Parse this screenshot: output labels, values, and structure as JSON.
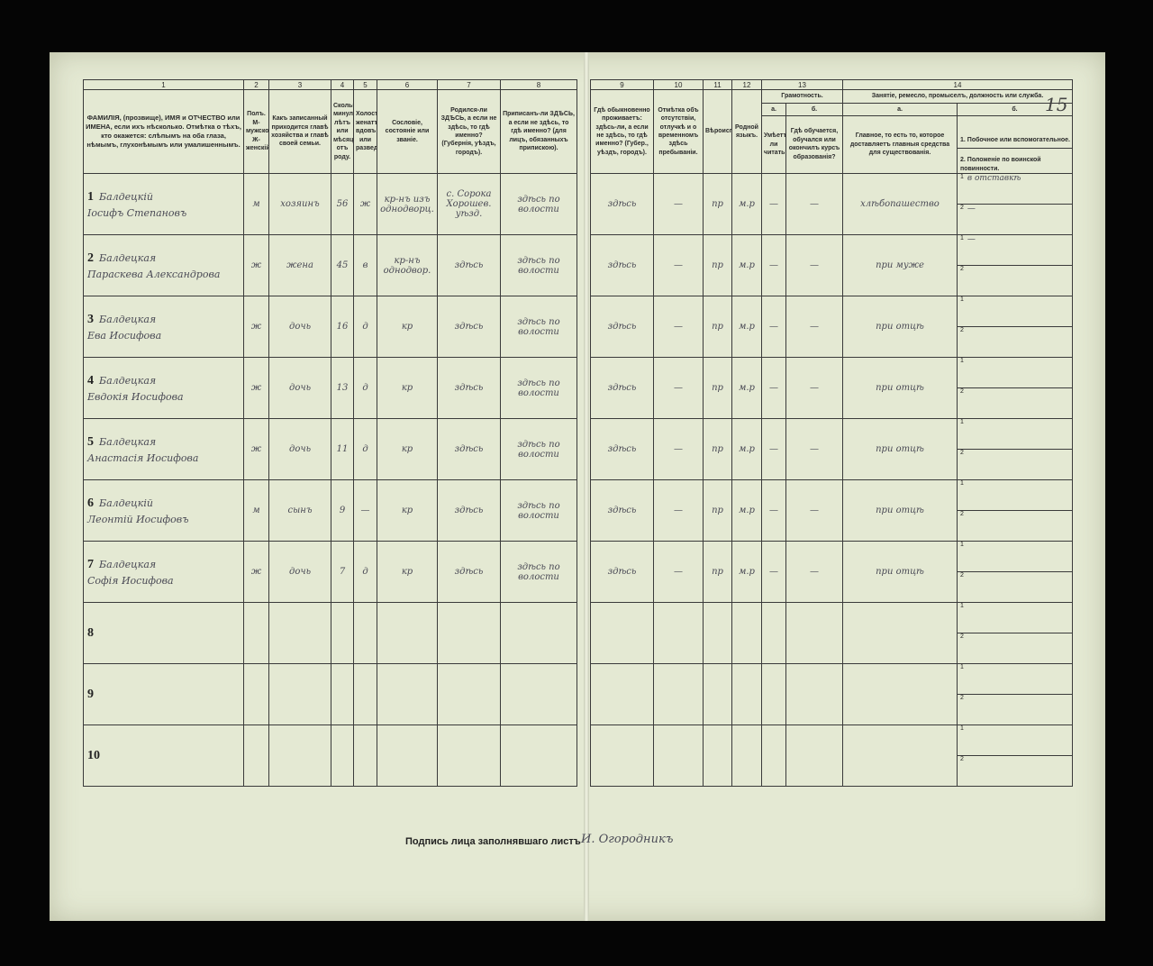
{
  "left_headers": {
    "numbers": [
      "1",
      "2",
      "3",
      "4",
      "5",
      "6",
      "7",
      "8"
    ],
    "titles": [
      "ФАМИЛІЯ, (прозвище), ИМЯ и ОТЧЕСТВО или ИМЕНА, если ихъ нѣсколько. Отмѣтка о тѣхъ, кто окажется: слѣпымъ на оба глаза, нѣмымъ, глухонѣмымъ или умалишеннымъ.",
      "Полъ. М-мужской. Ж-женскій.",
      "Какъ записанный приходится главѣ хозяйства и главѣ своей семьи.",
      "Сколько минуло лѣтъ или мѣсяцевъ отъ роду.",
      "Холостъ, женатъ, вдовъ или разведенъ.",
      "Сословіе, состояніе или званіе.",
      "Родился-ли ЗДѢСЬ, а если не здѣсь, то гдѣ именно? (Губернія, уѣздъ, городъ).",
      "Приписанъ-ли ЗДѢСЬ, а если не здѣсь, то гдѣ именно? (для лицъ, обязанныхъ припискою)."
    ]
  },
  "right_headers": {
    "numbers": [
      "9",
      "10",
      "11",
      "12",
      "13",
      "14"
    ],
    "titles": [
      "Гдѣ обыкновенно проживаетъ: здѣсь-ли, а если не здѣсь, то гдѣ именно? (Губер., уѣздъ, городъ).",
      "Отмѣтка объ отсутствіи, отлучкѣ и о временномъ здѣсь пребываніи.",
      "Вѣроисповѣданіе.",
      "Родной языкъ.",
      "Грамотность.",
      "Занятіе, ремесло, промыселъ, должность или служба."
    ],
    "lit_a": "а.",
    "lit_b": "б.",
    "lit_a_title": "Умѣетъ-ли читать?",
    "lit_b_title": "Гдѣ обучается, обучался или окончилъ курсъ образованія?",
    "occ_a": "а.",
    "occ_b": "б.",
    "occ_a_title": "Главное, то есть то, которое доставляетъ главныя средства для существованія.",
    "occ_b_1": "1. Побочное или вспомогательное.",
    "occ_b_2": "2. Положеніе по воинской повинности."
  },
  "sheet_number": "15",
  "rows": [
    {
      "n": "1",
      "surname": "Балдецкiй",
      "name": "Iосифъ Степановъ",
      "sex": "м",
      "rel": "хозяинъ",
      "age": "56",
      "mar": "ж",
      "estate": "кр-нъ изъ однодворц.",
      "born": "с. Сорока Хорошев. уѣзд.",
      "reg": "здѣсь по волости",
      "res": "здѣсь",
      "abs": "—",
      "rel2": "пр",
      "lang": "м.р",
      "lit": "—",
      "school": "—",
      "occ": "хлѣбопашество",
      "side1": "в отставкѣ",
      "side2": "—"
    },
    {
      "n": "2",
      "surname": "Балдецкая",
      "name": "Параскева Александрова",
      "sex": "ж",
      "rel": "жена",
      "age": "45",
      "mar": "в",
      "estate": "кр-нъ однодвор.",
      "born": "здѣсь",
      "reg": "здѣсь по волости",
      "res": "здѣсь",
      "abs": "—",
      "rel2": "пр",
      "lang": "м.р",
      "lit": "—",
      "school": "—",
      "occ": "при муже",
      "side1": "—",
      "side2": ""
    },
    {
      "n": "3",
      "surname": "Балдецкая",
      "name": "Ева Иосифова",
      "sex": "ж",
      "rel": "дочь",
      "age": "16",
      "mar": "д",
      "estate": "кр",
      "born": "здѣсь",
      "reg": "здѣсь по волости",
      "res": "здѣсь",
      "abs": "—",
      "rel2": "пр",
      "lang": "м.р",
      "lit": "—",
      "school": "—",
      "occ": "при отцѣ",
      "side1": "",
      "side2": ""
    },
    {
      "n": "4",
      "surname": "Балдецкая",
      "name": "Евдокія Иосифова",
      "sex": "ж",
      "rel": "дочь",
      "age": "13",
      "mar": "д",
      "estate": "кр",
      "born": "здѣсь",
      "reg": "здѣсь по волости",
      "res": "здѣсь",
      "abs": "—",
      "rel2": "пр",
      "lang": "м.р",
      "lit": "—",
      "school": "—",
      "occ": "при отцѣ",
      "side1": "",
      "side2": ""
    },
    {
      "n": "5",
      "surname": "Балдецкая",
      "name": "Анастасія Иосифова",
      "sex": "ж",
      "rel": "дочь",
      "age": "11",
      "mar": "д",
      "estate": "кр",
      "born": "здѣсь",
      "reg": "здѣсь по волости",
      "res": "здѣсь",
      "abs": "—",
      "rel2": "пр",
      "lang": "м.р",
      "lit": "—",
      "school": "—",
      "occ": "при отцѣ",
      "side1": "",
      "side2": ""
    },
    {
      "n": "6",
      "surname": "Балдецкiй",
      "name": "Леонтій Иосифовъ",
      "sex": "м",
      "rel": "сынъ",
      "age": "9",
      "mar": "—",
      "estate": "кр",
      "born": "здѣсь",
      "reg": "здѣсь по волости",
      "res": "здѣсь",
      "abs": "—",
      "rel2": "пр",
      "lang": "м.р",
      "lit": "—",
      "school": "—",
      "occ": "при отцѣ",
      "side1": "",
      "side2": ""
    },
    {
      "n": "7",
      "surname": "Балдецкая",
      "name": "Софія Иосифова",
      "sex": "ж",
      "rel": "дочь",
      "age": "7",
      "mar": "д",
      "estate": "кр",
      "born": "здѣсь",
      "reg": "здѣсь по волости",
      "res": "здѣсь",
      "abs": "—",
      "rel2": "пр",
      "lang": "м.р",
      "lit": "—",
      "school": "—",
      "occ": "при отцѣ",
      "side1": "",
      "side2": ""
    },
    {
      "n": "8"
    },
    {
      "n": "9"
    },
    {
      "n": "10"
    }
  ],
  "signature_label": "Подпись лица заполнявшаго листъ",
  "signature": "И. Огородникъ"
}
